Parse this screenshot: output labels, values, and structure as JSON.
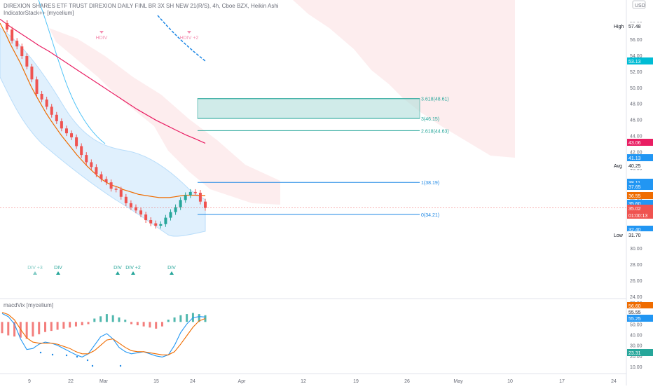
{
  "header": {
    "symbol_line": "DIREXION SHARES ETF TRUST DIREXION DAILY FINL BR 3X SH NEW 21(R/S), 4h, Cboe BZX, Heikin Ashi",
    "indicator1": "IndicatorStack++ [mycelium]",
    "currency": "USD"
  },
  "chart_data": [
    {
      "type": "line",
      "title": "DIREXION SHARES ETF TRUST DIREXION DAILY FINL BR 3X SH NEW 21(R/S), 4h, Cboe BZX, Heikin Ashi",
      "xlabel": "",
      "ylabel": "",
      "x_ticks": [
        "9",
        "22",
        "Mar",
        "15",
        "24",
        "Apr",
        "12",
        "19",
        "26",
        "May",
        "10",
        "17",
        "24"
      ],
      "y_ticks": [
        58,
        56,
        54,
        52,
        50,
        48,
        46,
        44,
        42,
        40,
        38,
        36,
        34,
        32,
        30,
        28,
        26,
        24
      ],
      "ylim": [
        23,
        60
      ],
      "series": [
        {
          "name": "",
          "values": [
            58.0,
            57.2,
            55.8,
            55.1,
            53.9,
            52.6,
            51.0,
            49.2,
            48.5,
            47.6,
            46.6,
            45.8,
            44.9,
            44.3,
            43.8,
            42.7,
            41.6,
            40.7,
            40.1,
            39.2,
            38.6,
            38.2,
            37.4,
            37.3,
            36.4,
            35.6,
            35.1,
            34.7,
            34.2,
            33.5,
            33.1,
            32.8,
            33.0,
            33.8,
            34.5,
            35.1,
            36.0,
            36.6,
            37.0,
            36.9,
            35.8,
            35.02
          ]
        },
        {
          "name": "",
          "values": [
            58.0,
            56.8,
            55.4,
            54.2,
            53.0,
            51.6,
            50.2,
            49.0,
            47.9,
            46.8,
            45.8,
            44.9,
            44.0,
            43.2,
            42.4,
            41.6,
            40.9,
            40.2,
            39.6,
            39.0,
            38.5,
            38.1,
            37.8,
            37.6,
            37.3,
            37.1,
            36.9,
            36.7,
            36.6,
            36.5,
            36.4,
            36.3,
            36.3,
            36.3,
            36.4,
            36.5,
            36.6,
            36.6,
            36.6,
            36.55,
            36.55
          ]
        },
        {
          "name": "",
          "values": [
            58.5,
            57.6,
            56.8,
            56.0,
            55.2,
            54.5,
            53.7,
            52.9,
            52.1,
            51.3,
            50.5,
            49.7,
            48.9,
            48.1,
            47.3,
            46.6,
            45.9,
            45.3,
            44.7,
            44.1,
            43.6,
            43.06
          ]
        }
      ],
      "price_labels": [
        {
          "label": "High",
          "value": "57.48"
        },
        {
          "label": "",
          "value": "53.13"
        },
        {
          "label": "",
          "value": "43.06"
        },
        {
          "label": "",
          "value": "41.13"
        },
        {
          "label": "Avg",
          "value": "40.25"
        },
        {
          "label": "",
          "value": "38.11"
        },
        {
          "label": "",
          "value": "37.65"
        },
        {
          "label": "",
          "value": "36.55"
        },
        {
          "label": "",
          "value": "35.60"
        },
        {
          "label": "",
          "value": "35.02"
        },
        {
          "label": "",
          "value": "01:00:13"
        },
        {
          "label": "",
          "value": "32.40"
        },
        {
          "label": "Low",
          "value": "31.70"
        }
      ],
      "fib_levels": [
        {
          "label": "3.618(48.61)",
          "value": 48.61
        },
        {
          "label": "3(46.15)",
          "value": 46.15
        },
        {
          "label": "2.618(44.63)",
          "value": 44.63
        },
        {
          "label": "1(38.19)",
          "value": 38.19
        },
        {
          "label": "0(34.21)",
          "value": 34.21
        }
      ],
      "signals": [
        {
          "label": "HDIV",
          "color": "#f48fb1"
        },
        {
          "label": "HDIV +2",
          "color": "#f48fb1"
        },
        {
          "label": "DIV +3",
          "color": "#80cbc4"
        },
        {
          "label": "DIV",
          "color": "#26a69a"
        },
        {
          "label": "DIV",
          "color": "#26a69a"
        },
        {
          "label": "DIV +2",
          "color": "#26a69a"
        },
        {
          "label": "DIV",
          "color": "#26a69a"
        }
      ],
      "grid": false,
      "colors": {
        "up": "#26a69a",
        "down": "#ef5350",
        "pink_line": "#e91e63",
        "orange_line": "#ef6c00",
        "blue_line": "#2196f3"
      }
    },
    {
      "type": "bar",
      "title": "macdVix [mycelium]",
      "y_ticks": [
        70.0,
        60.0,
        50.0,
        40.0,
        30.0,
        20.0,
        10.0
      ],
      "ylim": [
        5,
        72
      ],
      "price_labels": [
        "56.60",
        "55.55",
        "55.25",
        "23.31"
      ],
      "series": [
        {
          "name": "",
          "values": [
            60,
            57,
            50,
            36,
            26,
            27,
            31,
            33,
            32,
            30,
            27,
            24,
            21,
            19,
            22,
            30,
            38,
            41,
            36,
            28,
            24,
            22,
            23,
            24,
            22,
            20,
            19,
            21,
            30,
            42,
            50,
            56,
            57,
            56.6
          ]
        },
        {
          "name": "",
          "values": [
            61,
            59,
            54,
            45,
            37,
            33,
            32,
            32,
            32,
            31,
            29,
            27,
            24,
            22,
            22,
            25,
            30,
            35,
            36,
            32,
            28,
            25,
            24,
            24,
            23,
            22,
            21,
            21,
            24,
            31,
            39,
            47,
            53,
            55.25
          ]
        }
      ],
      "histogram": [
        -10,
        -12,
        -13,
        -14,
        -15,
        -13,
        -11,
        -9,
        -8,
        -7,
        -6,
        -5,
        -4,
        -3,
        -2,
        3,
        5,
        7,
        6,
        4,
        2,
        -2,
        -3,
        -4,
        -5,
        -6,
        -4,
        2,
        4,
        6,
        7,
        8,
        7,
        6
      ]
    }
  ]
}
